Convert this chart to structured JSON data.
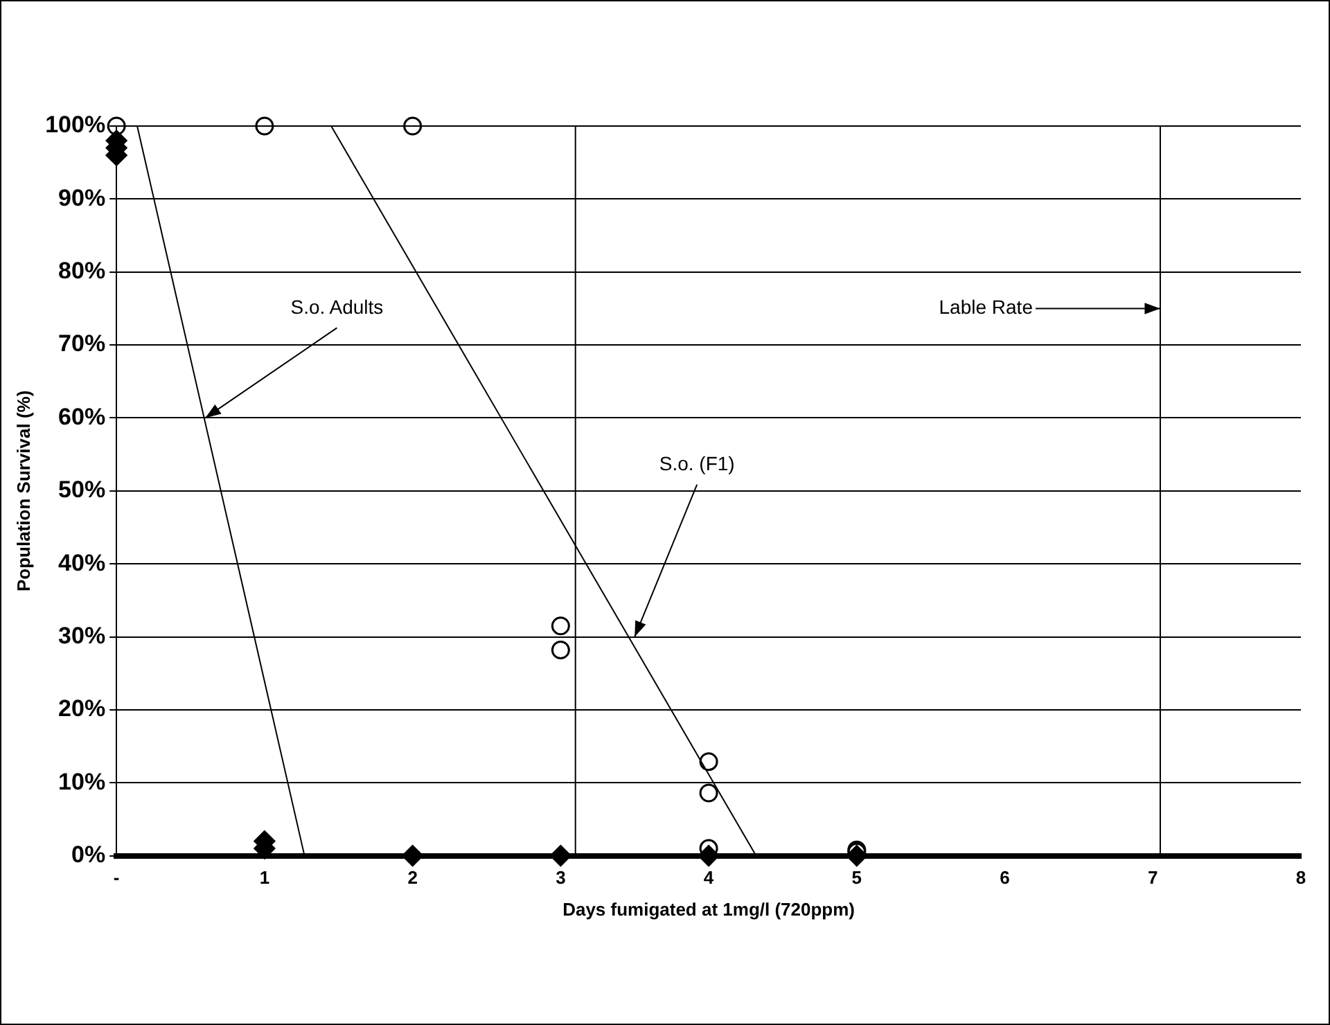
{
  "chart_data": {
    "type": "scatter",
    "xlabel": "Days fumigated at 1mg/l (720ppm)",
    "ylabel": "Population Survival (%)",
    "xlim": [
      0,
      8
    ],
    "xticks": [
      {
        "value": 0,
        "label": "-"
      },
      1,
      2,
      3,
      4,
      5,
      6,
      7,
      8
    ],
    "ylim": [
      0,
      100
    ],
    "yticks": [
      {
        "value": 0,
        "label": "0%"
      },
      {
        "value": 10,
        "label": "10%"
      },
      {
        "value": 20,
        "label": "20%"
      },
      {
        "value": 30,
        "label": "30%"
      },
      {
        "value": 40,
        "label": "40%"
      },
      {
        "value": 50,
        "label": "50%"
      },
      {
        "value": 60,
        "label": "60%"
      },
      {
        "value": 70,
        "label": "70%"
      },
      {
        "value": 80,
        "label": "80%"
      },
      {
        "value": 90,
        "label": "90%"
      },
      {
        "value": 100,
        "label": "100%"
      }
    ],
    "grid": "y",
    "series": [
      {
        "marker": "circle",
        "color": "#000000",
        "x": [
          0,
          1,
          2,
          3,
          3,
          4,
          4,
          4,
          5,
          5
        ],
        "values": [
          100,
          100,
          100,
          31.5,
          28.2,
          12.9,
          8.6,
          1,
          0.8,
          0.5
        ]
      },
      {
        "marker": "diamond",
        "color": "#000000",
        "x": [
          0,
          0,
          0,
          1,
          1,
          2,
          3,
          4,
          5
        ],
        "values": [
          98,
          97,
          96,
          2,
          1,
          0,
          0,
          0,
          0
        ]
      },
      {
        "type": "line",
        "marker": "none",
        "line_style": "solid",
        "color": "#000000",
        "x": [
          0.14,
          1.27
        ],
        "values": [
          100,
          0
        ]
      },
      {
        "type": "line",
        "marker": "none",
        "line_style": "solid",
        "color": "#000000",
        "x": [
          1.45,
          4.32
        ],
        "values": [
          100,
          0
        ]
      }
    ],
    "ref_lines": [
      {
        "axis": "x",
        "value": 3.1,
        "color": "#000000"
      },
      {
        "axis": "x",
        "value": 7.05,
        "color": "#000000"
      }
    ],
    "annotations": [
      {
        "text": "S.o. Adults",
        "x": 0.6,
        "y": 60
      },
      {
        "text": "S.o. (F1)",
        "x": 3.5,
        "y": 30
      },
      {
        "text": "Lable Rate",
        "x": 7.05,
        "y": 75
      }
    ]
  }
}
